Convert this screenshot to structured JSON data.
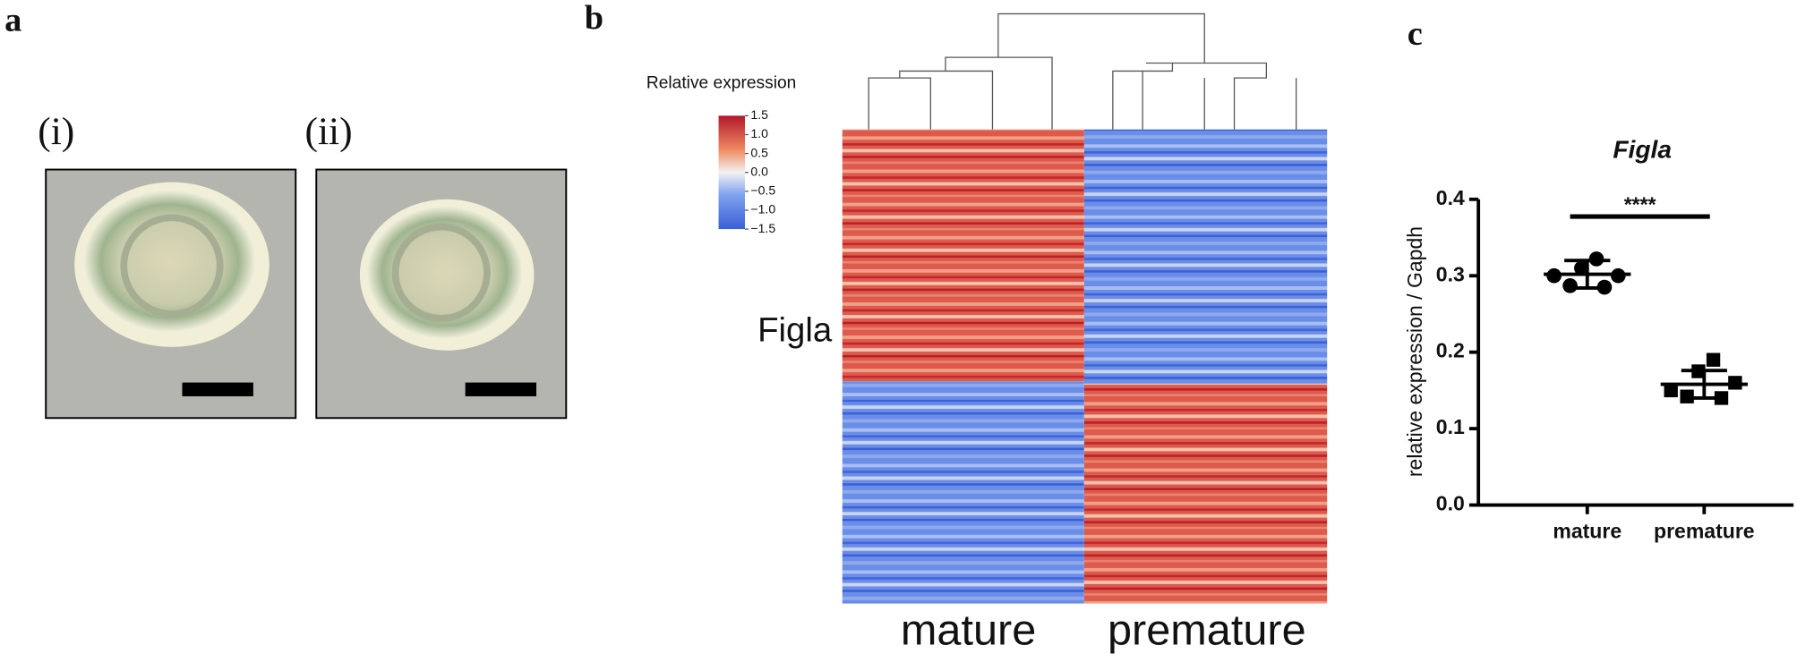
{
  "panel_a": {
    "label": "a",
    "images": [
      {
        "label": "(i)"
      },
      {
        "label": "(ii)"
      }
    ]
  },
  "panel_b": {
    "label": "b",
    "legend_title": "Relative expression",
    "colorbar_ticks": [
      {
        "value": 1.5,
        "label": "1.5"
      },
      {
        "value": 1.0,
        "label": "1.0"
      },
      {
        "value": 0.5,
        "label": "0.5"
      },
      {
        "value": 0.0,
        "label": "0.0"
      },
      {
        "value": -0.5,
        "label": "−0.5"
      },
      {
        "value": -1.0,
        "label": "−1.0"
      },
      {
        "value": -1.5,
        "label": "−1.5"
      }
    ],
    "colorbar_lim": [
      -1.5,
      1.5
    ],
    "gene_label": "Figla",
    "groups": [
      "mature",
      "premature"
    ]
  },
  "chart_data": {
    "type": "scatter",
    "panel_label": "c",
    "title": "Figla",
    "ylabel": "relative expression / Gapdh",
    "categories": [
      "mature",
      "premature"
    ],
    "groups": [
      {
        "marker": "circle",
        "values": [
          0.3,
          0.287,
          0.31,
          0.322,
          0.285,
          0.3
        ],
        "mean": 0.302,
        "error": 0.018
      },
      {
        "marker": "square",
        "values": [
          0.15,
          0.142,
          0.175,
          0.19,
          0.14,
          0.16
        ],
        "mean": 0.158,
        "error": 0.018
      }
    ],
    "annotation": "****",
    "ylim": [
      0,
      0.4
    ],
    "yticks": [
      {
        "value": 0,
        "label": "0.0"
      },
      {
        "value": 0.1,
        "label": "0.1"
      },
      {
        "value": 0.2,
        "label": "0.2"
      },
      {
        "value": 0.3,
        "label": "0.3"
      },
      {
        "value": 0.4,
        "label": "0.4"
      }
    ],
    "color": "#000000"
  }
}
